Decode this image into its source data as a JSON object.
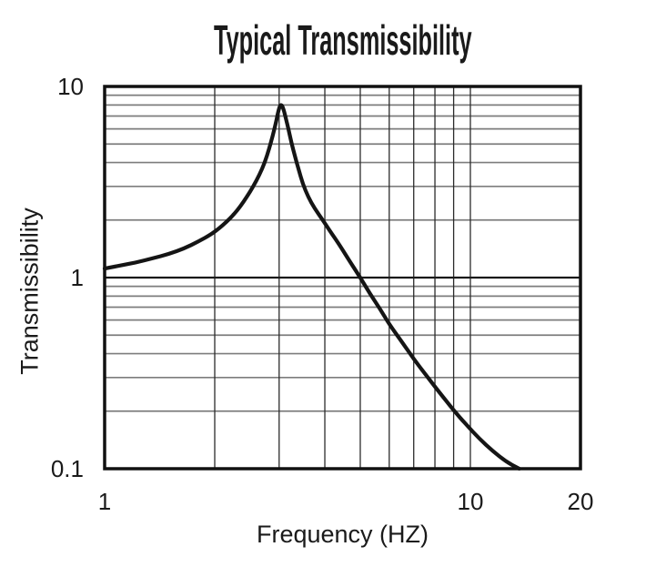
{
  "colors": {
    "background": "#ffffff",
    "text": "#1a1a1a",
    "curve": "#151515",
    "grid_minor": "#7d7d7d",
    "grid_vertical": "#2b2b2b",
    "grid_major": "#1a1a1a",
    "frame": "#111111"
  },
  "chart_data": {
    "type": "line",
    "title": "Typical Transmissibility",
    "xlabel": "Frequency (HZ)",
    "ylabel": "Transmissibility",
    "x_scale": "log",
    "y_scale": "log",
    "xlim": [
      1,
      20
    ],
    "ylim": [
      0.1,
      10
    ],
    "grid": true,
    "legend": false,
    "x_ticks": [
      {
        "value": 1,
        "label": "1"
      },
      {
        "value": 10,
        "label": "10"
      },
      {
        "value": 20,
        "label": "20"
      }
    ],
    "y_ticks": [
      {
        "value": 10,
        "label": "10"
      },
      {
        "value": 1,
        "label": "1"
      },
      {
        "value": 0.1,
        "label": "0.1"
      }
    ],
    "x_gridlines": [
      2,
      3,
      4,
      5,
      6,
      7,
      8,
      9,
      10
    ],
    "y_gridlines_minor": [
      0.2,
      0.3,
      0.4,
      0.5,
      0.6,
      0.7,
      0.8,
      0.9,
      2,
      3,
      4,
      5,
      6,
      7,
      8,
      9
    ],
    "y_gridlines_major": [
      1
    ],
    "series": [
      {
        "peak": {
          "frequency_hz": 3,
          "transmissibility": 8
        },
        "points": [
          [
            1.0,
            1.115
          ],
          [
            1.1,
            1.155
          ],
          [
            1.22,
            1.2
          ],
          [
            1.35,
            1.26
          ],
          [
            1.5,
            1.33
          ],
          [
            1.65,
            1.42
          ],
          [
            1.8,
            1.54
          ],
          [
            1.95,
            1.68
          ],
          [
            2.05,
            1.8
          ],
          [
            2.15,
            1.95
          ],
          [
            2.25,
            2.13
          ],
          [
            2.35,
            2.36
          ],
          [
            2.45,
            2.65
          ],
          [
            2.55,
            3.0
          ],
          [
            2.65,
            3.45
          ],
          [
            2.74,
            4.0
          ],
          [
            2.82,
            4.75
          ],
          [
            2.88,
            5.5
          ],
          [
            2.93,
            6.3
          ],
          [
            2.97,
            7.1
          ],
          [
            3.0,
            7.7
          ],
          [
            3.02,
            7.95
          ],
          [
            3.04,
            8.0
          ],
          [
            3.06,
            7.9
          ],
          [
            3.09,
            7.5
          ],
          [
            3.13,
            6.8
          ],
          [
            3.18,
            6.0
          ],
          [
            3.24,
            5.1
          ],
          [
            3.31,
            4.35
          ],
          [
            3.39,
            3.7
          ],
          [
            3.48,
            3.1
          ],
          [
            3.6,
            2.65
          ],
          [
            3.75,
            2.3
          ],
          [
            3.95,
            2.0
          ],
          [
            4.15,
            1.73
          ],
          [
            4.4,
            1.47
          ],
          [
            4.7,
            1.2
          ],
          [
            5.0,
            1.0
          ],
          [
            5.3,
            0.83
          ],
          [
            5.65,
            0.69
          ],
          [
            6.0,
            0.57
          ],
          [
            6.5,
            0.46
          ],
          [
            7.0,
            0.375
          ],
          [
            7.6,
            0.305
          ],
          [
            8.2,
            0.253
          ],
          [
            9.0,
            0.202
          ],
          [
            9.8,
            0.168
          ],
          [
            10.6,
            0.143
          ],
          [
            11.5,
            0.124
          ],
          [
            12.5,
            0.109
          ],
          [
            13.6,
            0.1
          ]
        ]
      }
    ]
  }
}
